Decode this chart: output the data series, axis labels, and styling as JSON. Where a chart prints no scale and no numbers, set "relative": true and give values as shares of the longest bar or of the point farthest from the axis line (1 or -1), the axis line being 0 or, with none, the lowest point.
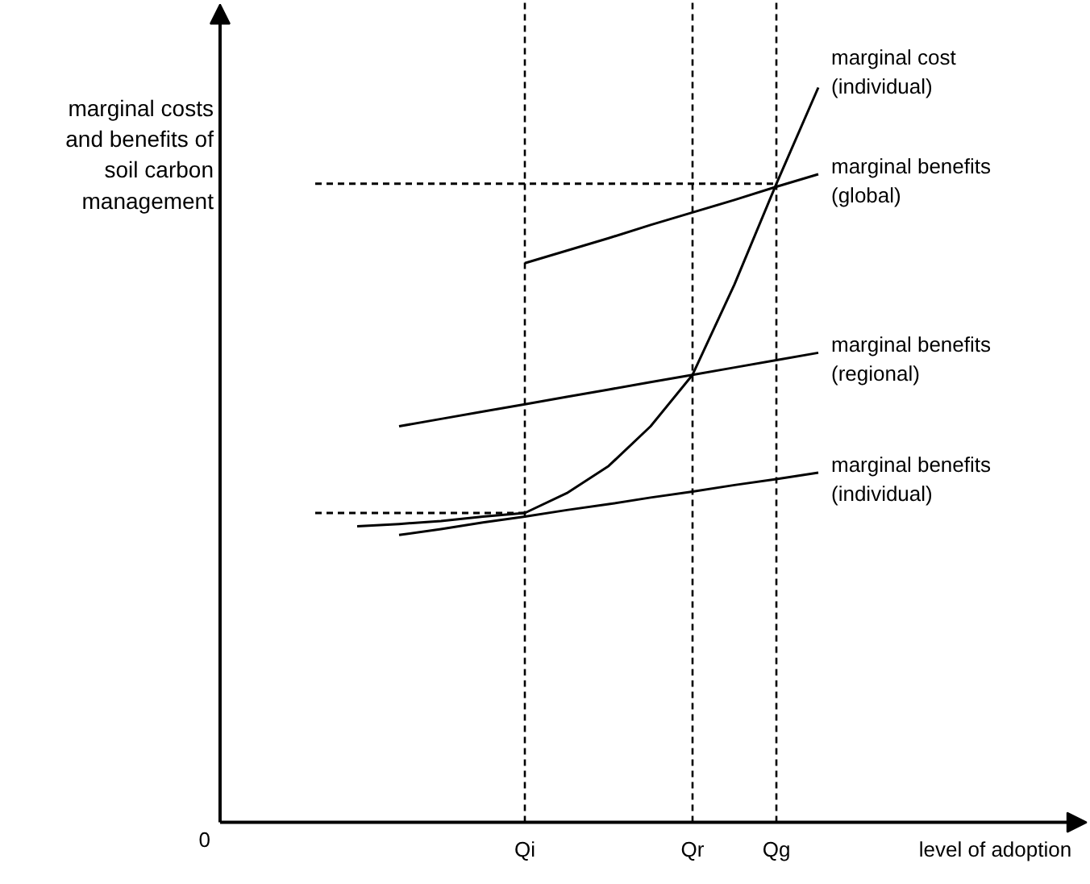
{
  "chart_data": {
    "type": "line",
    "relative": true,
    "ylabel": "marginal costs\nand benefits of\nsoil carbon\nmanagement",
    "xlabel": "level of adoption",
    "annotations": [
      "0"
    ],
    "categories": [
      null,
      null,
      null,
      null,
      null,
      "Qi",
      null,
      null,
      null,
      "Qr",
      null,
      "Qg",
      null,
      null,
      null
    ],
    "line_style": "solid",
    "series": [
      {
        "name": "marginal cost\n(individual)",
        "color": "#000000",
        "values": [
          null,
          0.403,
          0.406,
          0.41,
          0.416,
          0.421,
          0.448,
          0.485,
          0.539,
          0.609,
          0.732,
          0.869,
          1.0,
          null,
          null
        ]
      },
      {
        "name": "marginal benefits\n(global)",
        "color": "#000000",
        "values": [
          null,
          null,
          null,
          null,
          null,
          0.761,
          0.778,
          0.795,
          0.813,
          0.83,
          0.847,
          0.865,
          0.882,
          null,
          null
        ]
      },
      {
        "name": "marginal benefits\n(regional)",
        "color": "#000000",
        "values": [
          null,
          null,
          0.539,
          0.549,
          0.559,
          0.569,
          0.579,
          0.589,
          0.599,
          0.609,
          0.619,
          0.629,
          0.639,
          null,
          null
        ]
      },
      {
        "name": "marginal benefits\n(individual)",
        "color": "#000000",
        "values": [
          null,
          null,
          0.391,
          0.399,
          0.408,
          0.416,
          0.425,
          0.433,
          0.442,
          0.45,
          0.459,
          0.467,
          0.476,
          null,
          null
        ]
      },
      {
        "color": "#000000",
        "line_style": "dashed",
        "values": [
          0.421,
          0.421,
          0.421,
          0.421,
          0.421,
          0.421,
          null,
          null,
          null,
          null,
          null,
          null,
          null,
          null,
          null
        ]
      },
      {
        "color": "#000000",
        "line_style": "dashed",
        "values": [
          0.869,
          0.869,
          0.869,
          0.869,
          0.869,
          0.869,
          0.869,
          0.869,
          0.869,
          0.869,
          0.869,
          0.869,
          null,
          null,
          null
        ]
      }
    ],
    "ref_lines": [
      {
        "axis": "x",
        "value": "Qi",
        "line_style": "dashed",
        "color": "#000000"
      },
      {
        "axis": "x",
        "value": "Qr",
        "line_style": "dashed",
        "color": "#000000"
      },
      {
        "axis": "x",
        "value": "Qg",
        "line_style": "dashed",
        "color": "#000000"
      }
    ]
  }
}
